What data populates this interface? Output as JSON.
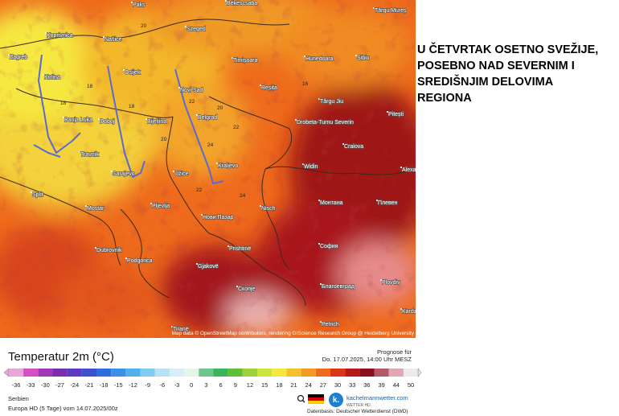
{
  "headline": {
    "lines": [
      "U ČETVRTAK OSETNO SVEŽIJE,",
      "POSEBNO NAD SEVERNIM I",
      "SREDIŠNJIM DELOVIMA",
      "REGIONA"
    ]
  },
  "map": {
    "places": [
      "Paks",
      "Békéscsaba",
      "Târgu Mureș",
      "Koprivnica",
      "Našice",
      "Szeged",
      "Timișoara",
      "Hunedoara",
      "Sibiu",
      "Zagreb",
      "Kutina",
      "Osijek",
      "Reșița",
      "Târgu Jiu",
      "Novi Sad",
      "Pitești",
      "Banja Luka",
      "Doboj",
      "Bijeljina",
      "Belgrad",
      "Drobeta-Turnu Severin",
      "Craiova",
      "Travnik",
      "Sarajevo",
      "Užice",
      "Kraljevo",
      "Widin",
      "Alexandria",
      "Split",
      "Pljevlja",
      "Mostar",
      "Нови Пазар",
      "Nisch",
      "Монтана",
      "Плевен",
      "Dubrovnik",
      "Podgorica",
      "Prishtinë",
      "София",
      "Gjakovë",
      "Скопје",
      "Благоевград",
      "Plovdiv",
      "Tiranë",
      "Kardzali",
      "Petrich"
    ],
    "temperatures": [
      20,
      18,
      18,
      20,
      22,
      16,
      18,
      24,
      22,
      24,
      22,
      20
    ],
    "attribution": "Map data © OpenStreetMap contributors, rendering GIScience Research Group @ Heidelberg University"
  },
  "legend": {
    "title": "Temperatur 2m (°C)",
    "forecast_label": "Prognose für",
    "forecast_time": "Do. 17.07.2025, 14:00 Uhr MESZ",
    "ticks": [
      -36,
      -33,
      -30,
      -27,
      -24,
      -21,
      -18,
      -15,
      -12,
      -9,
      -6,
      -3,
      0,
      3,
      6,
      9,
      12,
      15,
      18,
      21,
      24,
      27,
      30,
      33,
      36,
      39,
      44,
      50
    ],
    "region": "Serbien",
    "model": "Europa HD (5 Tage) vom 14.07.2025/00z",
    "brand": "kachelmannwetter.com",
    "brand_sub": "WETTER HD",
    "source": "Datenbasis: Deutscher Wetterdienst (DWD)"
  }
}
